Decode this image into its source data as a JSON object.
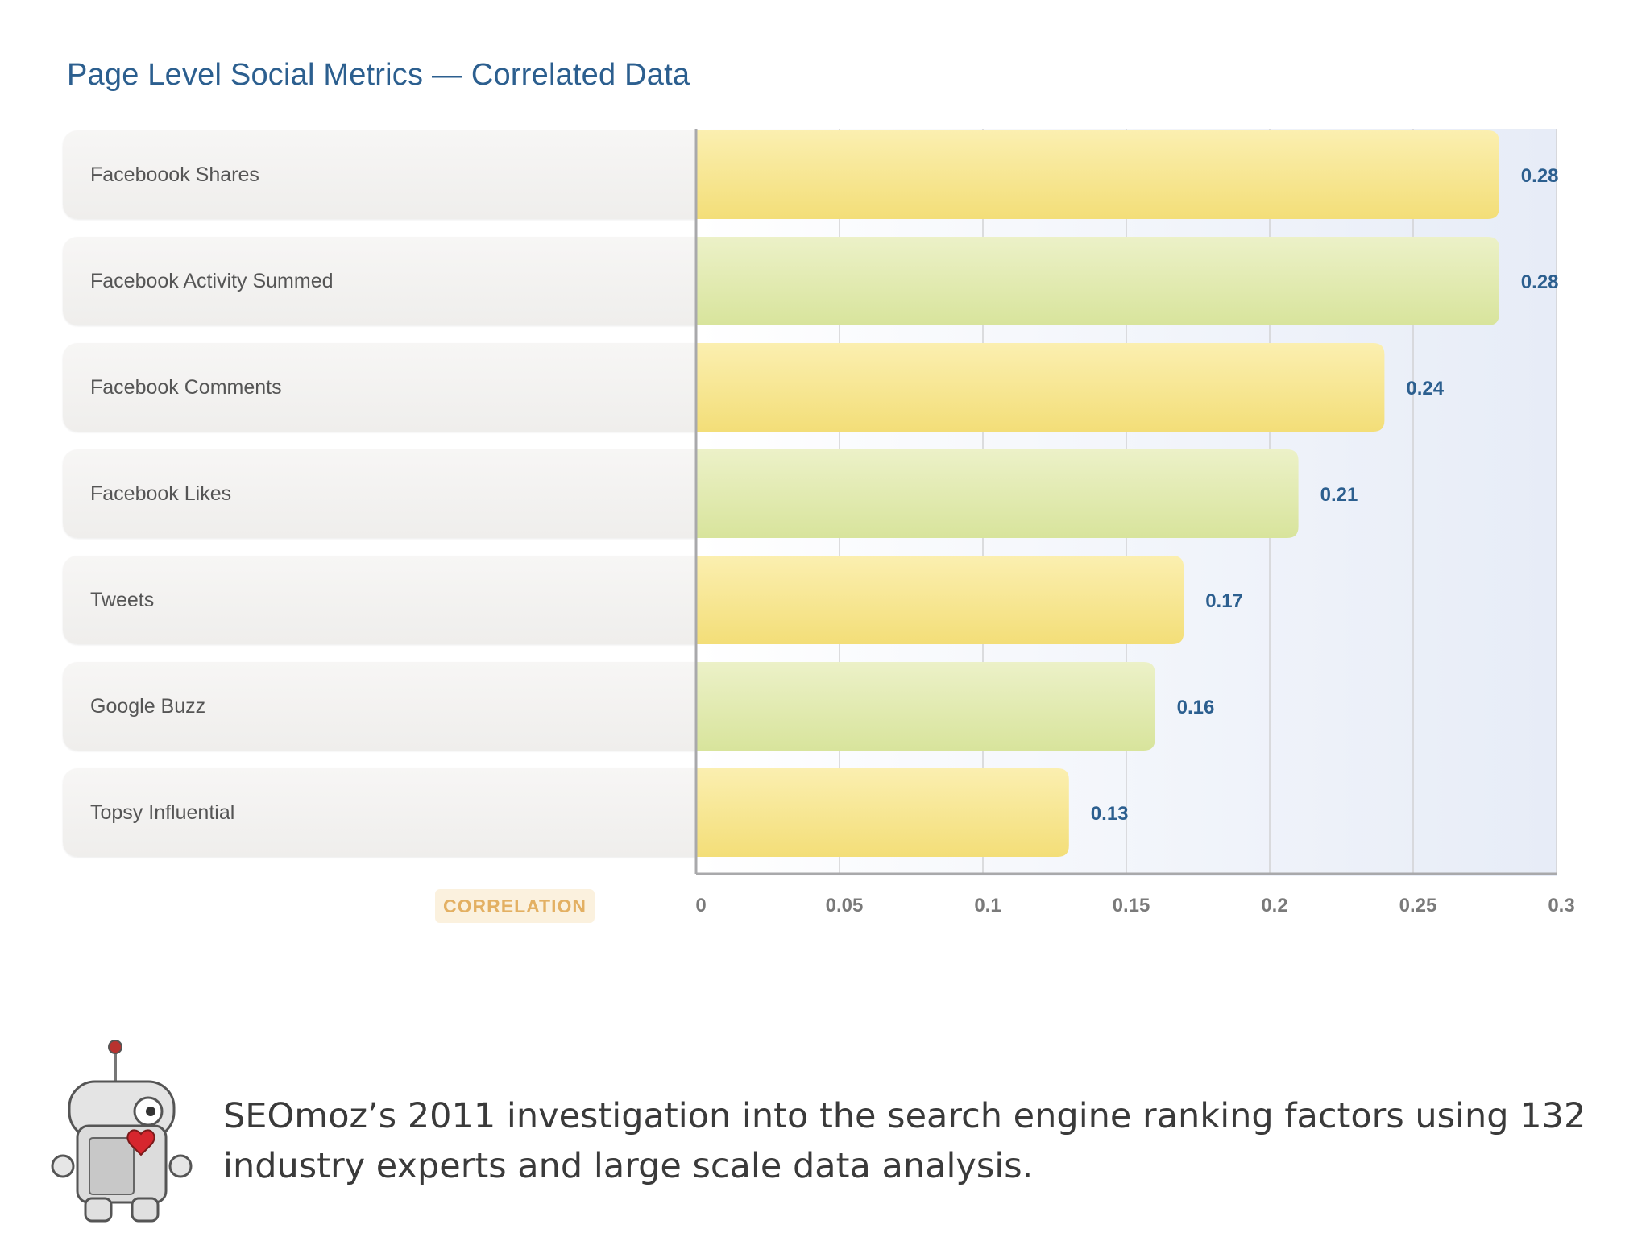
{
  "chart_data": {
    "type": "bar",
    "orientation": "horizontal",
    "title": "Page Level Social Metrics — Correlated Data",
    "xlabel": "CORRELATION",
    "categories": [
      "Faceboook Shares",
      "Facebook Activity Summed",
      "Facebook Comments",
      "Facebook Likes",
      "Tweets",
      "Google Buzz",
      "Topsy Influential"
    ],
    "values": [
      0.28,
      0.28,
      0.24,
      0.21,
      0.17,
      0.16,
      0.13
    ],
    "value_labels": [
      "0.28",
      "0.28",
      "0.24",
      "0.21",
      "0.17",
      "0.16",
      "0.13"
    ],
    "bar_colors": [
      "#f7e58a",
      "#dfe9a8",
      "#f7e58a",
      "#dfe9a8",
      "#f7e58a",
      "#dfe9a8",
      "#f7e58a"
    ],
    "xlim": [
      0,
      0.3
    ],
    "xticks": [
      "0",
      "0.05",
      "0.1",
      "0.15",
      "0.2",
      "0.25",
      "0.3"
    ],
    "grid": true,
    "value_label_color": "#2c5f8f"
  },
  "footer": {
    "text": "SEOmoz’s 2011 investigation into the search engine ranking factors using 132 industry experts and large scale data analysis.",
    "image": "robot-mascot-icon"
  }
}
